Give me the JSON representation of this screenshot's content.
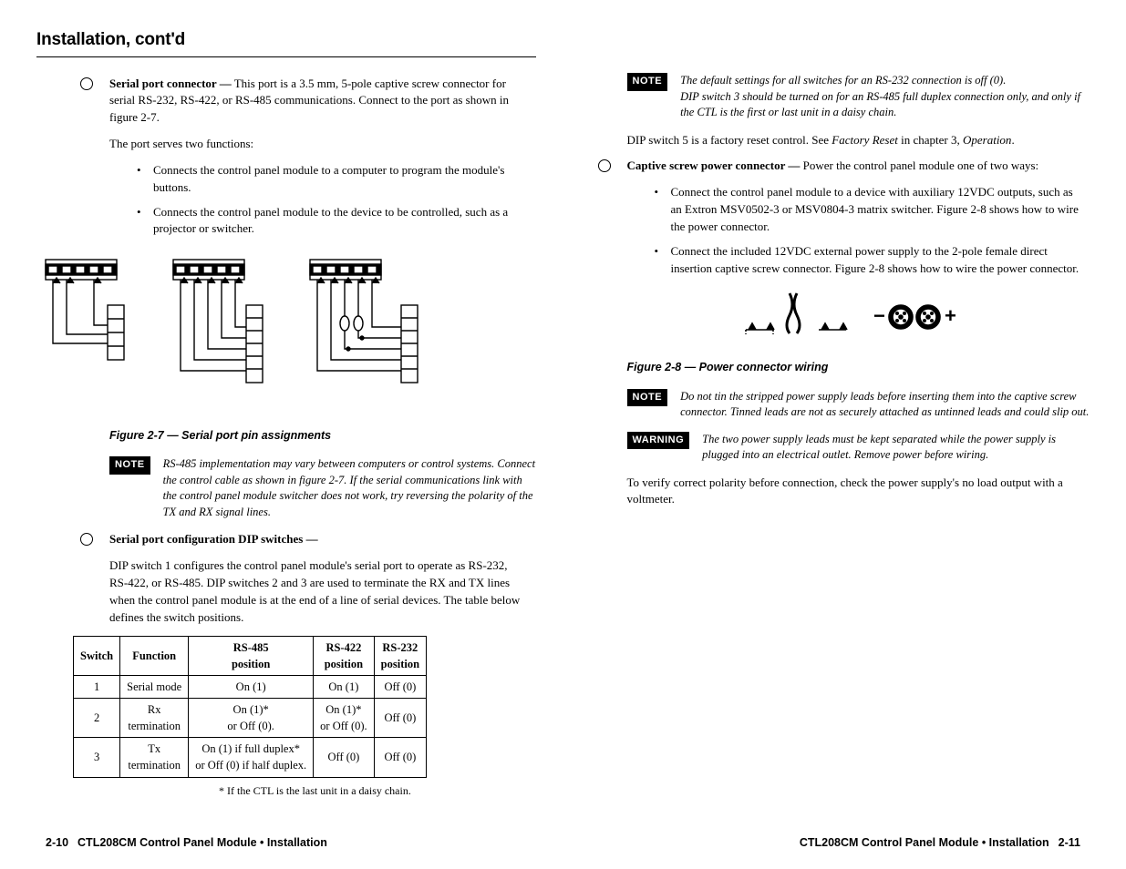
{
  "section_title": "Installation, cont'd",
  "left": {
    "serial_port_label": "Serial port connector —",
    "serial_port_text": " This port is a 3.5 mm, 5-pole captive screw connector for serial RS-232, RS-422, or RS-485 communications.  Connect to the port as shown in figure 2-7.",
    "two_functions": "The port serves two functions:",
    "func1": "Connects the control panel module to a computer to program the module's buttons.",
    "func2": "Connects the control panel module to the device to be controlled, such as a projector or switcher.",
    "fig27_caption": "Figure 2-7 — Serial port pin assignments",
    "note1_badge": "NOTE",
    "note1_text": "RS-485 implementation may vary between computers or control systems.  Connect the control cable as shown in figure 2-7.  If the serial communications link with the control panel module switcher does not work, try reversing the polarity of the TX and RX signal lines.",
    "dip_heading": "Serial port configuration DIP switches —",
    "dip_para": "DIP switch 1 configures the control panel module's serial port to operate as RS-232, RS-422, or RS-485.  DIP switches 2 and 3 are used to terminate the RX and TX lines when the control panel module is at the end of a line of serial devices.  The table below defines the switch positions.",
    "table": {
      "headers": [
        "Switch",
        "Function",
        "RS-485 position",
        "RS-422 position",
        "RS-232 position"
      ],
      "rows": [
        [
          "1",
          "Serial mode",
          "On (1)",
          "On (1)",
          "Off (0)"
        ],
        [
          "2",
          "Rx termination",
          "On (1)* or Off (0).",
          "On (1)* or Off (0).",
          "Off (0)"
        ],
        [
          "3",
          "Tx termination",
          "On (1) if full duplex* or Off (0) if half duplex.",
          "Off (0)",
          "Off (0)"
        ]
      ],
      "footnote": "* If the CTL is the last unit in a daisy chain."
    },
    "footer_page": "2-10",
    "footer_text": "CTL208CM Control Panel Module • Installation"
  },
  "right": {
    "note2_badge": "NOTE",
    "note2_text": "The default settings for all switches for an RS-232 connection is off (0). DIP switch 3 should be turned on for an RS-485 full duplex connection only, and only if the CTL is the first or last unit in a daisy chain.",
    "dip5_text_a": "DIP switch 5 is a factory reset control.  See ",
    "dip5_text_b": "Factory Reset",
    "dip5_text_c": " in chapter 3, ",
    "dip5_text_d": "Operation",
    "dip5_text_e": ".",
    "power_label": "Captive screw power connector —",
    "power_text": " Power the control panel module one of two ways:",
    "pwr1": "Connect the control panel module to a device with auxiliary 12VDC outputs, such as an Extron MSV0502-3 or MSV0804-3 matrix switcher.  Figure 2-8 shows how to wire the power connector.",
    "pwr2": "Connect the included 12VDC external power supply to the 2-pole female direct insertion captive screw connector.  Figure 2-8 shows how to wire the power connector.",
    "fig28_caption": "Figure 2-8 — Power connector wiring",
    "note3_badge": "NOTE",
    "note3_text": "Do not tin the stripped power supply leads before inserting them into the captive screw connector.  Tinned leads are not as securely attached as untinned leads and could slip out.",
    "warn_badge": "WARNING",
    "warn_text": "The two power supply leads must be kept separated while the power supply is plugged into an electrical outlet.  Remove power before wiring.",
    "verify_text": "To verify correct polarity before connection, check the power supply's no load output with a voltmeter.",
    "footer_text": "CTL208CM Control Panel Module • Installation",
    "footer_page": "2-11"
  },
  "diagram": {
    "stroke": "#000",
    "stroke_width": 1.4,
    "conn_width": 78,
    "conn_height": 28
  }
}
